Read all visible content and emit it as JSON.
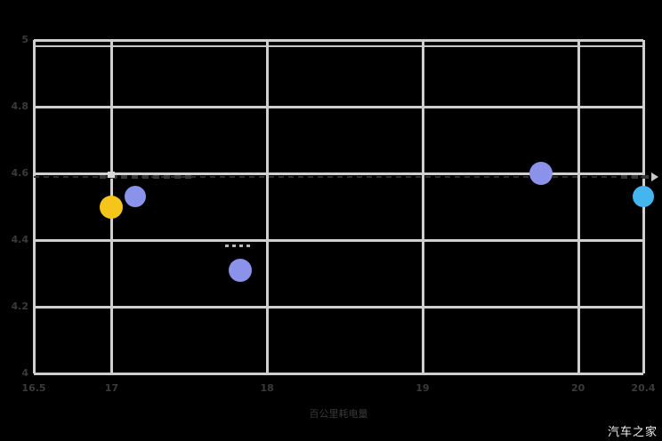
{
  "page": {
    "watermark": "汽车之家",
    "background": "#000000"
  },
  "axis": {
    "x_title": "百公里耗电量"
  },
  "colors": {
    "gridline": "#cfcfcf",
    "tick_label": "#3a3a3a",
    "markline": "#2e2e2e",
    "watermark": "#f0f0f0",
    "highlight_bubble": "#f6c51c",
    "competitor_bubble": "#8a93e9",
    "accent_bubble": "#45b5ef"
  },
  "chart_data": {
    "type": "scatter",
    "title": "",
    "xlabel": "百公里耗电量",
    "ylabel": "",
    "xlim": [
      16.5,
      20.42
    ],
    "ylim": [
      4,
      5
    ],
    "grid": true,
    "legend": "none",
    "x_ticks": [
      {
        "value": 16.5,
        "label": "16.5"
      },
      {
        "value": 17,
        "label": "17"
      },
      {
        "value": 18,
        "label": "18"
      },
      {
        "value": 19,
        "label": "19"
      },
      {
        "value": 20,
        "label": "20"
      },
      {
        "value": 20.42,
        "label": "20.4"
      }
    ],
    "y_ticks": [
      {
        "value": 5,
        "label": "5"
      },
      {
        "value": 4.8,
        "label": "4.8"
      },
      {
        "value": 4.6,
        "label": "4.6"
      },
      {
        "value": 4.4,
        "label": "4.4"
      },
      {
        "value": 4.2,
        "label": "4.2"
      },
      {
        "value": 4,
        "label": "4"
      }
    ],
    "series": [
      {
        "name": "highlighted-model",
        "color": "#f6c51c",
        "points": [
          {
            "x": 17.0,
            "y": 4.5,
            "r": 13
          }
        ]
      },
      {
        "name": "competitor-models",
        "color": "#8a93e9",
        "points": [
          {
            "x": 17.15,
            "y": 4.53,
            "r": 12
          },
          {
            "x": 17.83,
            "y": 4.31,
            "r": 13
          },
          {
            "x": 19.76,
            "y": 4.6,
            "r": 13
          }
        ]
      },
      {
        "name": "accent-model",
        "color": "#45b5ef",
        "points": [
          {
            "x": 20.42,
            "y": 4.53,
            "r": 12
          }
        ]
      }
    ],
    "markline": {
      "y": 4.59,
      "style": "dashed"
    }
  }
}
